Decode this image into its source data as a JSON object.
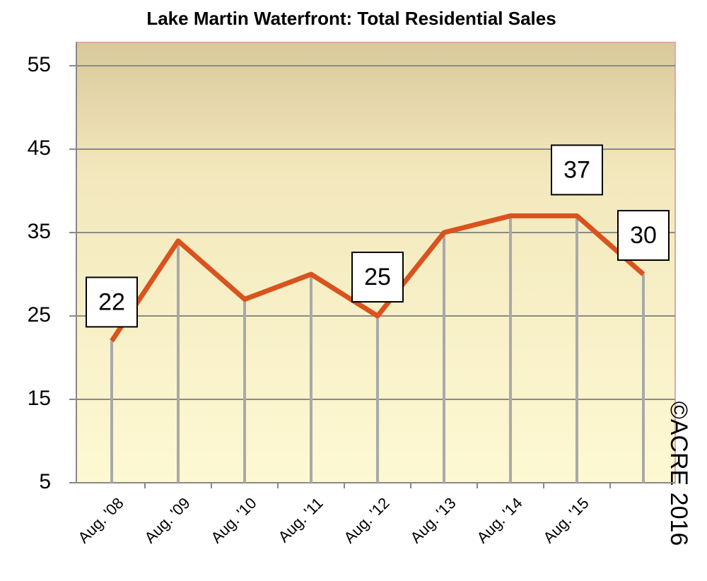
{
  "chart_data": {
    "type": "line",
    "title": "Lake Martin Waterfront: Total Residential Sales",
    "categories": [
      "Aug. '08",
      "Aug. '09",
      "Aug. '10",
      "Aug. '11",
      "Aug. '12",
      "Aug. '13",
      "Aug. '14",
      "Aug. '15",
      null
    ],
    "series": [
      {
        "name": "Total Residential Sales",
        "color": "#d9531e",
        "values": [
          22,
          34,
          27,
          30,
          25,
          35,
          37,
          37,
          30
        ],
        "value_labels": [
          "22",
          null,
          null,
          null,
          "25",
          null,
          null,
          "37",
          "30"
        ]
      }
    ],
    "ylim": [
      5,
      57.8
    ],
    "yticks": [
      5,
      15,
      25,
      35,
      45,
      55
    ],
    "grid": true,
    "annotations": [
      "©ACRE 2016"
    ]
  }
}
